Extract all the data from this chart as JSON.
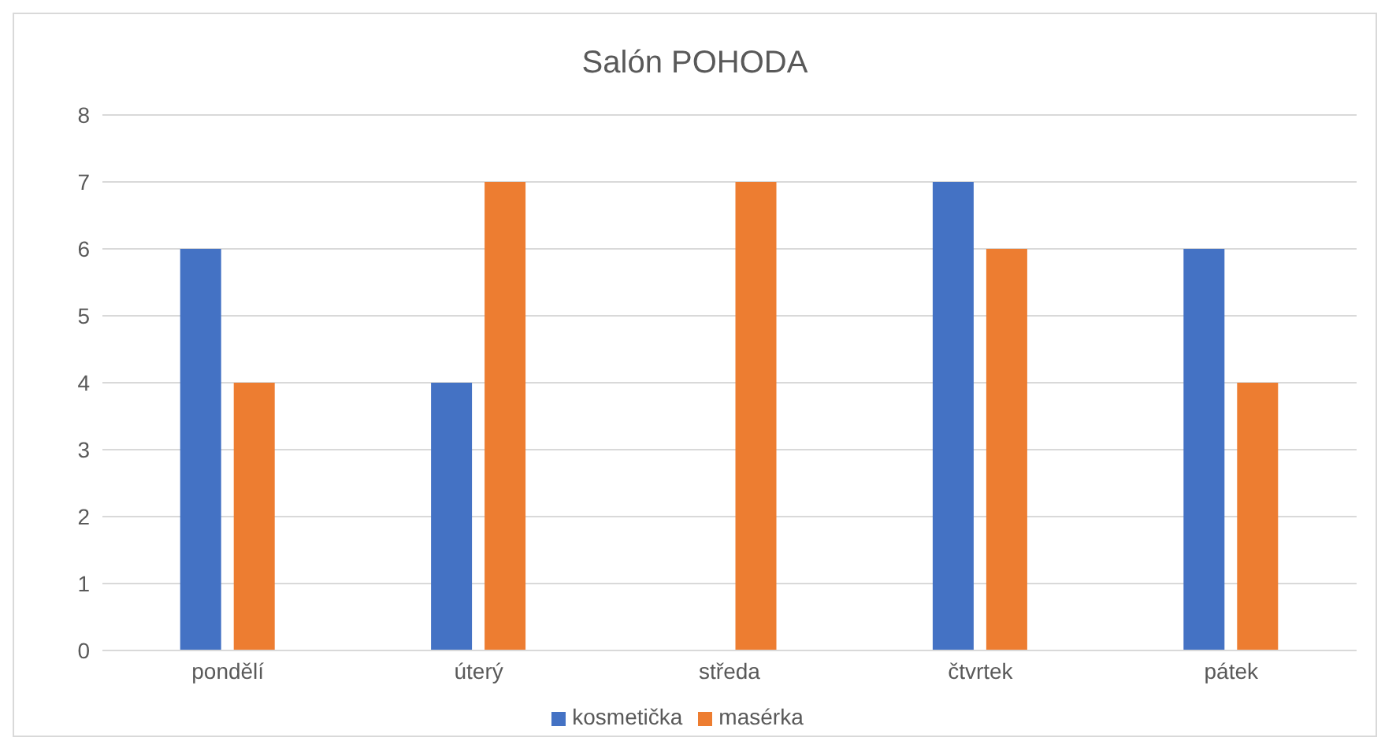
{
  "chart_data": {
    "type": "bar",
    "title": "Salón POHODA",
    "categories": [
      "pondělí",
      "úterý",
      "středa",
      "čtvrtek",
      "pátek"
    ],
    "series": [
      {
        "name": "kosmetička",
        "color": "#4472c4",
        "values": [
          6,
          4,
          0,
          7,
          6
        ]
      },
      {
        "name": "masérka",
        "color": "#ed7d31",
        "values": [
          4,
          7,
          7,
          6,
          4
        ]
      }
    ],
    "ylim": [
      0,
      8
    ],
    "yticks": [
      0,
      1,
      2,
      3,
      4,
      5,
      6,
      7,
      8
    ],
    "grid": "y",
    "legend": "bottom"
  }
}
